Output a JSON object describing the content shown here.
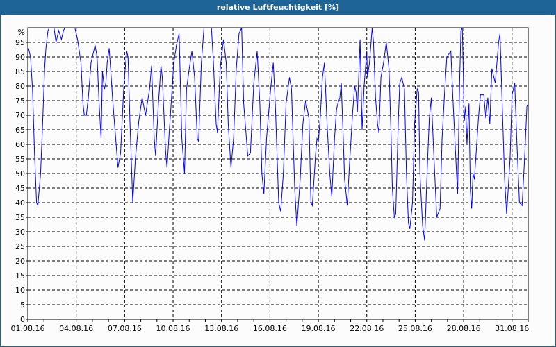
{
  "window": {
    "title": "relative Luftfeuchtigkeit [%]"
  },
  "colors": {
    "title_bar": "#1f6496",
    "series": "#0000ff",
    "grid": "#000000"
  },
  "chart_data": {
    "type": "line",
    "title": "relative Luftfeuchtigkeit [%]",
    "ylabel": "%",
    "ylim": [
      0,
      100
    ],
    "yticks": [
      0,
      5,
      10,
      15,
      20,
      25,
      30,
      35,
      40,
      45,
      50,
      55,
      60,
      65,
      70,
      75,
      80,
      85,
      90,
      95
    ],
    "xlim": [
      "01.08.16 00:00",
      "01.09.16 00:00"
    ],
    "xticks": [
      "01.08.16",
      "04.08.16",
      "07.08.16",
      "10.08.16",
      "13.08.16",
      "16.08.16",
      "19.08.16",
      "22.08.16",
      "25.08.16",
      "28.08.16",
      "31.08.16"
    ],
    "grid": true,
    "series": [
      {
        "color": "#0000ff",
        "days": [
          {
            "date": "01.08.16",
            "points": [
              [
                1,
                93
              ],
              [
                4,
                90
              ],
              [
                7,
                79
              ],
              [
                10,
                57
              ],
              [
                13,
                40
              ],
              [
                15,
                39
              ],
              [
                19,
                50
              ],
              [
                22,
                67
              ]
            ]
          },
          {
            "date": "02.08.16",
            "points": [
              [
                1,
                86
              ],
              [
                3,
                93
              ],
              [
                6,
                99
              ],
              [
                8,
                100
              ],
              [
                15,
                100
              ],
              [
                18,
                95
              ],
              [
                22,
                99
              ]
            ]
          },
          {
            "date": "03.08.16",
            "points": [
              [
                2,
                96
              ],
              [
                5,
                99
              ],
              [
                7,
                100
              ],
              [
                22,
                100
              ]
            ]
          },
          {
            "date": "04.08.16",
            "points": [
              [
                2,
                96
              ],
              [
                7,
                88
              ],
              [
                10,
                74
              ],
              [
                12,
                70
              ],
              [
                15,
                70
              ],
              [
                18,
                76
              ],
              [
                22,
                88
              ]
            ]
          },
          {
            "date": "05.08.16",
            "points": [
              [
                4,
                94
              ],
              [
                7,
                90
              ],
              [
                10,
                74
              ],
              [
                13,
                62
              ],
              [
                15,
                85
              ],
              [
                18,
                79
              ],
              [
                20,
                81
              ],
              [
                22,
                88
              ]
            ]
          },
          {
            "date": "06.08.16",
            "points": [
              [
                1,
                93
              ],
              [
                4,
                83
              ],
              [
                6,
                76
              ],
              [
                10,
                64
              ],
              [
                14,
                52
              ],
              [
                18,
                57
              ],
              [
                23,
                81
              ]
            ]
          },
          {
            "date": "07.08.16",
            "points": [
              [
                3,
                92
              ],
              [
                5,
                90
              ],
              [
                8,
                67
              ],
              [
                12,
                40
              ],
              [
                16,
                55
              ],
              [
                21,
                68
              ]
            ]
          },
          {
            "date": "08.08.16",
            "points": [
              [
                2,
                76
              ],
              [
                7,
                70
              ],
              [
                13,
                79
              ],
              [
                16,
                87
              ],
              [
                20,
                62
              ],
              [
                22,
                56
              ]
            ]
          },
          {
            "date": "09.08.16",
            "points": [
              [
                2,
                73
              ],
              [
                6,
                87
              ],
              [
                8,
                83
              ],
              [
                13,
                57
              ],
              [
                15,
                52
              ],
              [
                18,
                63
              ],
              [
                22,
                77
              ]
            ]
          },
          {
            "date": "10.08.16",
            "points": [
              [
                1,
                88
              ],
              [
                5,
                94
              ],
              [
                9,
                98
              ],
              [
                13,
                62
              ],
              [
                17,
                50
              ],
              [
                20,
                79
              ]
            ]
          },
          {
            "date": "11.08.16",
            "points": [
              [
                0,
                86
              ],
              [
                4,
                92
              ],
              [
                8,
                83
              ],
              [
                12,
                62
              ],
              [
                14,
                61
              ],
              [
                18,
                88
              ],
              [
                22,
                100
              ]
            ]
          },
          {
            "date": "12.08.16",
            "points": [
              [
                9,
                100
              ],
              [
                12,
                88
              ],
              [
                16,
                67
              ],
              [
                18,
                64
              ],
              [
                22,
                86
              ]
            ]
          },
          {
            "date": "13.08.16",
            "points": [
              [
                3,
                96
              ],
              [
                7,
                88
              ],
              [
                10,
                67
              ],
              [
                14,
                52
              ],
              [
                18,
                62
              ],
              [
                22,
                86
              ]
            ]
          },
          {
            "date": "14.08.16",
            "points": [
              [
                2,
                98
              ],
              [
                6,
                100
              ],
              [
                9,
                74
              ],
              [
                15,
                56
              ],
              [
                19,
                57
              ]
            ]
          },
          {
            "date": "15.08.16",
            "points": [
              [
                0,
                81
              ],
              [
                5,
                92
              ],
              [
                9,
                74
              ],
              [
                12,
                50
              ],
              [
                15,
                43
              ],
              [
                19,
                62
              ]
            ]
          },
          {
            "date": "16.08.16",
            "points": [
              [
                1,
                79
              ],
              [
                5,
                88
              ],
              [
                8,
                74
              ],
              [
                13,
                40
              ],
              [
                16,
                37
              ],
              [
                20,
                50
              ]
            ]
          },
          {
            "date": "17.08.16",
            "points": [
              [
                0,
                74
              ],
              [
                5,
                83
              ],
              [
                8,
                79
              ],
              [
                13,
                44
              ],
              [
                16,
                32
              ],
              [
                21,
                48
              ]
            ]
          },
          {
            "date": "18.08.16",
            "points": [
              [
                1,
                67
              ],
              [
                5,
                75
              ],
              [
                10,
                69
              ],
              [
                13,
                40
              ],
              [
                15,
                39
              ],
              [
                20,
                57
              ],
              [
                22,
                62
              ]
            ]
          },
          {
            "date": "19.08.16",
            "points": [
              [
                0,
                61
              ],
              [
                3,
                70
              ],
              [
                6,
                83
              ],
              [
                9,
                88
              ],
              [
                13,
                67
              ],
              [
                17,
                50
              ],
              [
                20,
                42
              ]
            ]
          },
          {
            "date": "20.08.16",
            "points": [
              [
                0,
                62
              ],
              [
                3,
                72
              ],
              [
                5,
                74
              ],
              [
                8,
                76
              ],
              [
                10,
                81
              ],
              [
                13,
                62
              ],
              [
                15,
                48
              ],
              [
                19,
                39
              ],
              [
                22,
                52
              ]
            ]
          },
          {
            "date": "21.08.16",
            "points": [
              [
                3,
                71
              ],
              [
                6,
                80
              ],
              [
                8,
                78
              ],
              [
                10,
                71
              ],
              [
                12,
                83
              ],
              [
                14,
                96
              ],
              [
                17,
                65
              ],
              [
                20,
                80
              ]
            ]
          },
          {
            "date": "22.08.16",
            "points": [
              [
                0,
                92
              ],
              [
                1,
                83
              ],
              [
                4,
                88
              ],
              [
                8,
                100
              ],
              [
                10,
                95
              ],
              [
                13,
                76
              ],
              [
                16,
                67
              ],
              [
                18,
                64
              ],
              [
                21,
                83
              ]
            ]
          },
          {
            "date": "23.08.16",
            "points": [
              [
                1,
                88
              ],
              [
                5,
                95
              ],
              [
                9,
                86
              ],
              [
                12,
                64
              ],
              [
                14,
                45
              ],
              [
                17,
                35
              ],
              [
                19,
                36
              ],
              [
                23,
                69
              ]
            ]
          },
          {
            "date": "24.08.16",
            "points": [
              [
                1,
                81
              ],
              [
                4,
                83
              ],
              [
                8,
                79
              ],
              [
                11,
                50
              ],
              [
                14,
                33
              ],
              [
                16,
                31
              ],
              [
                20,
                40
              ],
              [
                23,
                67
              ]
            ]
          },
          {
            "date": "25.08.16",
            "points": [
              [
                3,
                79
              ],
              [
                5,
                78
              ],
              [
                7,
                50
              ],
              [
                11,
                32
              ],
              [
                14,
                27
              ],
              [
                18,
                52
              ],
              [
                21,
                69
              ]
            ]
          },
          {
            "date": "26.08.16",
            "points": [
              [
                0,
                76
              ],
              [
                4,
                55
              ],
              [
                8,
                35
              ],
              [
                13,
                38
              ],
              [
                16,
                62
              ],
              [
                20,
                79
              ],
              [
                23,
                90
              ]
            ]
          },
          {
            "date": "27.08.16",
            "points": [
              [
                5,
                92
              ],
              [
                8,
                76
              ],
              [
                13,
                52
              ],
              [
                15,
                43
              ],
              [
                18,
                81
              ],
              [
                20,
                99
              ],
              [
                22,
                100
              ]
            ]
          },
          {
            "date": "28.08.16",
            "points": [
              [
                1,
                68
              ],
              [
                3,
                73
              ],
              [
                5,
                60
              ],
              [
                8,
                74
              ],
              [
                10,
                44
              ],
              [
                12,
                38
              ],
              [
                14,
                50
              ],
              [
                16,
                48
              ],
              [
                22,
                69
              ]
            ]
          },
          {
            "date": "29.08.16",
            "points": [
              [
                1,
                77
              ],
              [
                6,
                77
              ],
              [
                9,
                69
              ],
              [
                12,
                76
              ],
              [
                15,
                67
              ],
              [
                18,
                86
              ],
              [
                23,
                81
              ]
            ]
          },
          {
            "date": "30.08.16",
            "points": [
              [
                4,
                95
              ],
              [
                6,
                98
              ],
              [
                9,
                76
              ],
              [
                13,
                48
              ],
              [
                16,
                36
              ],
              [
                21,
                55
              ]
            ]
          },
          {
            "date": "31.08.16",
            "points": [
              [
                0,
                77
              ],
              [
                4,
                81
              ],
              [
                7,
                62
              ],
              [
                11,
                40
              ],
              [
                15,
                39
              ],
              [
                19,
                57
              ],
              [
                22,
                73
              ]
            ]
          },
          {
            "date": "01.09.16",
            "points": [
              [
                0,
                74
              ]
            ]
          }
        ]
      }
    ]
  }
}
